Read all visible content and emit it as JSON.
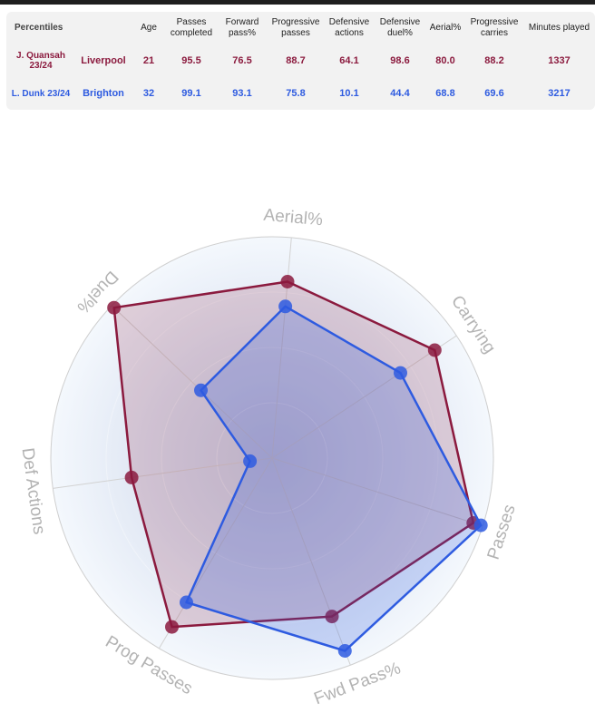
{
  "table": {
    "columns": [
      "Percentiles",
      "",
      "Age",
      "Passes completed",
      "Forward pass%",
      "Progressive passes",
      "Defensive actions",
      "Defensive duel%",
      "Aerial%",
      "Progressive carries",
      "Minutes played"
    ],
    "rows": [
      {
        "player": "J. Quansah 23/24",
        "team": "Liverpool",
        "age": "21",
        "passes_completed": "95.5",
        "forward_pass_pct": "76.5",
        "progressive_passes": "88.7",
        "defensive_actions": "64.1",
        "defensive_duel_pct": "98.6",
        "aerial_pct": "80.0",
        "progressive_carries": "88.2",
        "minutes_played": "1337",
        "color": "#8b1a3e"
      },
      {
        "player": "L. Dunk 23/24",
        "team": "Brighton",
        "age": "32",
        "passes_completed": "99.1",
        "forward_pass_pct": "93.1",
        "progressive_passes": "75.8",
        "defensive_actions": "10.1",
        "defensive_duel_pct": "44.4",
        "aerial_pct": "68.8",
        "progressive_carries": "69.6",
        "minutes_played": "3217",
        "color": "#2e5be0"
      }
    ]
  },
  "chart_data": {
    "type": "radar",
    "axes": [
      "Aerial%",
      "Carrying",
      "Passes",
      "Fwd Pass%",
      "Prog Passes",
      "Def Actions",
      "Duel%"
    ],
    "range": [
      0,
      100
    ],
    "grid": true,
    "series": [
      {
        "name": "J. Quansah 23/24",
        "color": "#8b1a3e",
        "values": [
          80.0,
          88.2,
          95.5,
          76.5,
          88.7,
          64.1,
          98.6
        ]
      },
      {
        "name": "L. Dunk 23/24",
        "color": "#2e5be0",
        "values": [
          68.8,
          69.6,
          99.1,
          93.1,
          75.8,
          10.1,
          44.4
        ]
      }
    ]
  }
}
